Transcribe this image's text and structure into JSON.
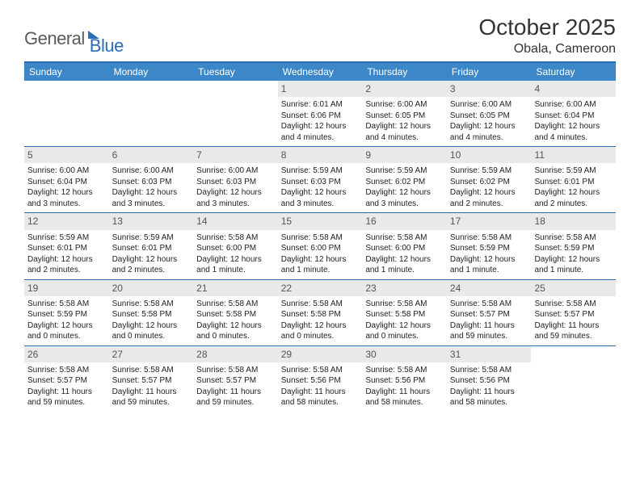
{
  "logo": {
    "text1": "General",
    "text2": "Blue"
  },
  "title": "October 2025",
  "location": "Obala, Cameroon",
  "colors": {
    "header_bar": "#3b87c8",
    "rule": "#2a6db8",
    "daynum_bg": "#e9e9e9",
    "text": "#222222",
    "title_text": "#333333"
  },
  "weekdays": [
    "Sunday",
    "Monday",
    "Tuesday",
    "Wednesday",
    "Thursday",
    "Friday",
    "Saturday"
  ],
  "weeks": [
    [
      {
        "n": "",
        "empty": true
      },
      {
        "n": "",
        "empty": true
      },
      {
        "n": "",
        "empty": true
      },
      {
        "n": "1",
        "sr": "Sunrise: 6:01 AM",
        "ss": "Sunset: 6:06 PM",
        "dl": "Daylight: 12 hours and 4 minutes."
      },
      {
        "n": "2",
        "sr": "Sunrise: 6:00 AM",
        "ss": "Sunset: 6:05 PM",
        "dl": "Daylight: 12 hours and 4 minutes."
      },
      {
        "n": "3",
        "sr": "Sunrise: 6:00 AM",
        "ss": "Sunset: 6:05 PM",
        "dl": "Daylight: 12 hours and 4 minutes."
      },
      {
        "n": "4",
        "sr": "Sunrise: 6:00 AM",
        "ss": "Sunset: 6:04 PM",
        "dl": "Daylight: 12 hours and 4 minutes."
      }
    ],
    [
      {
        "n": "5",
        "sr": "Sunrise: 6:00 AM",
        "ss": "Sunset: 6:04 PM",
        "dl": "Daylight: 12 hours and 3 minutes."
      },
      {
        "n": "6",
        "sr": "Sunrise: 6:00 AM",
        "ss": "Sunset: 6:03 PM",
        "dl": "Daylight: 12 hours and 3 minutes."
      },
      {
        "n": "7",
        "sr": "Sunrise: 6:00 AM",
        "ss": "Sunset: 6:03 PM",
        "dl": "Daylight: 12 hours and 3 minutes."
      },
      {
        "n": "8",
        "sr": "Sunrise: 5:59 AM",
        "ss": "Sunset: 6:03 PM",
        "dl": "Daylight: 12 hours and 3 minutes."
      },
      {
        "n": "9",
        "sr": "Sunrise: 5:59 AM",
        "ss": "Sunset: 6:02 PM",
        "dl": "Daylight: 12 hours and 3 minutes."
      },
      {
        "n": "10",
        "sr": "Sunrise: 5:59 AM",
        "ss": "Sunset: 6:02 PM",
        "dl": "Daylight: 12 hours and 2 minutes."
      },
      {
        "n": "11",
        "sr": "Sunrise: 5:59 AM",
        "ss": "Sunset: 6:01 PM",
        "dl": "Daylight: 12 hours and 2 minutes."
      }
    ],
    [
      {
        "n": "12",
        "sr": "Sunrise: 5:59 AM",
        "ss": "Sunset: 6:01 PM",
        "dl": "Daylight: 12 hours and 2 minutes."
      },
      {
        "n": "13",
        "sr": "Sunrise: 5:59 AM",
        "ss": "Sunset: 6:01 PM",
        "dl": "Daylight: 12 hours and 2 minutes."
      },
      {
        "n": "14",
        "sr": "Sunrise: 5:58 AM",
        "ss": "Sunset: 6:00 PM",
        "dl": "Daylight: 12 hours and 1 minute."
      },
      {
        "n": "15",
        "sr": "Sunrise: 5:58 AM",
        "ss": "Sunset: 6:00 PM",
        "dl": "Daylight: 12 hours and 1 minute."
      },
      {
        "n": "16",
        "sr": "Sunrise: 5:58 AM",
        "ss": "Sunset: 6:00 PM",
        "dl": "Daylight: 12 hours and 1 minute."
      },
      {
        "n": "17",
        "sr": "Sunrise: 5:58 AM",
        "ss": "Sunset: 5:59 PM",
        "dl": "Daylight: 12 hours and 1 minute."
      },
      {
        "n": "18",
        "sr": "Sunrise: 5:58 AM",
        "ss": "Sunset: 5:59 PM",
        "dl": "Daylight: 12 hours and 1 minute."
      }
    ],
    [
      {
        "n": "19",
        "sr": "Sunrise: 5:58 AM",
        "ss": "Sunset: 5:59 PM",
        "dl": "Daylight: 12 hours and 0 minutes."
      },
      {
        "n": "20",
        "sr": "Sunrise: 5:58 AM",
        "ss": "Sunset: 5:58 PM",
        "dl": "Daylight: 12 hours and 0 minutes."
      },
      {
        "n": "21",
        "sr": "Sunrise: 5:58 AM",
        "ss": "Sunset: 5:58 PM",
        "dl": "Daylight: 12 hours and 0 minutes."
      },
      {
        "n": "22",
        "sr": "Sunrise: 5:58 AM",
        "ss": "Sunset: 5:58 PM",
        "dl": "Daylight: 12 hours and 0 minutes."
      },
      {
        "n": "23",
        "sr": "Sunrise: 5:58 AM",
        "ss": "Sunset: 5:58 PM",
        "dl": "Daylight: 12 hours and 0 minutes."
      },
      {
        "n": "24",
        "sr": "Sunrise: 5:58 AM",
        "ss": "Sunset: 5:57 PM",
        "dl": "Daylight: 11 hours and 59 minutes."
      },
      {
        "n": "25",
        "sr": "Sunrise: 5:58 AM",
        "ss": "Sunset: 5:57 PM",
        "dl": "Daylight: 11 hours and 59 minutes."
      }
    ],
    [
      {
        "n": "26",
        "sr": "Sunrise: 5:58 AM",
        "ss": "Sunset: 5:57 PM",
        "dl": "Daylight: 11 hours and 59 minutes."
      },
      {
        "n": "27",
        "sr": "Sunrise: 5:58 AM",
        "ss": "Sunset: 5:57 PM",
        "dl": "Daylight: 11 hours and 59 minutes."
      },
      {
        "n": "28",
        "sr": "Sunrise: 5:58 AM",
        "ss": "Sunset: 5:57 PM",
        "dl": "Daylight: 11 hours and 59 minutes."
      },
      {
        "n": "29",
        "sr": "Sunrise: 5:58 AM",
        "ss": "Sunset: 5:56 PM",
        "dl": "Daylight: 11 hours and 58 minutes."
      },
      {
        "n": "30",
        "sr": "Sunrise: 5:58 AM",
        "ss": "Sunset: 5:56 PM",
        "dl": "Daylight: 11 hours and 58 minutes."
      },
      {
        "n": "31",
        "sr": "Sunrise: 5:58 AM",
        "ss": "Sunset: 5:56 PM",
        "dl": "Daylight: 11 hours and 58 minutes."
      },
      {
        "n": "",
        "empty": true
      }
    ]
  ]
}
